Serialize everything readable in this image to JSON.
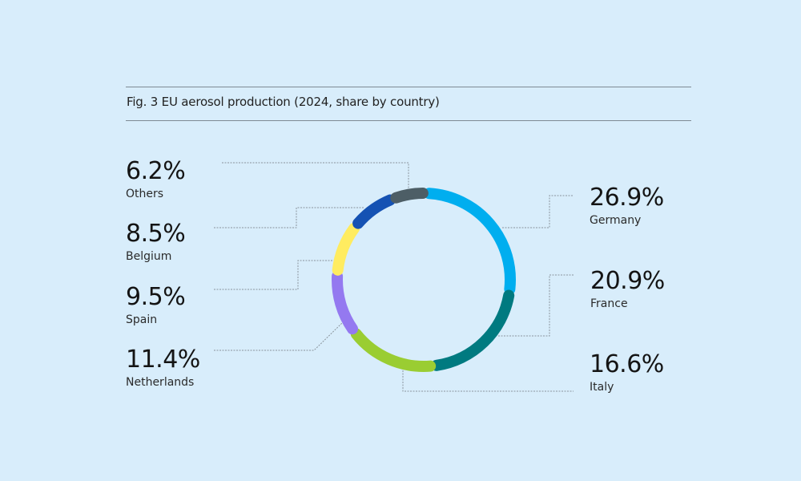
{
  "title": "Fig. 3 EU aerosol production (2024, share by country)",
  "colors": {
    "background": "#d8edfb",
    "rule": "#7e8a94",
    "connector": "#8a949c"
  },
  "chart_data": {
    "type": "pie",
    "subtype": "donut",
    "title": "Fig. 3 EU aerosol production (2024, share by country)",
    "unit": "%",
    "categories": [
      "Germany",
      "France",
      "Italy",
      "Netherlands",
      "Spain",
      "Belgium",
      "Others"
    ],
    "values": [
      26.9,
      20.9,
      16.6,
      11.4,
      9.5,
      8.5,
      6.2
    ],
    "colors": [
      "#00aeef",
      "#007a80",
      "#9acd32",
      "#9479f0",
      "#ffec60",
      "#1552b3",
      "#4d5e66"
    ],
    "legend_position": "labels around donut with connector lines",
    "start_angle": "12 o'clock, clockwise"
  },
  "labels": [
    {
      "country": "Others",
      "value": "6.2%"
    },
    {
      "country": "Belgium",
      "value": "8.5%"
    },
    {
      "country": "Spain",
      "value": "9.5%"
    },
    {
      "country": "Netherlands",
      "value": "11.4%"
    },
    {
      "country": "Germany",
      "value": "26.9%"
    },
    {
      "country": "France",
      "value": "20.9%"
    },
    {
      "country": "Italy",
      "value": "16.6%"
    }
  ]
}
